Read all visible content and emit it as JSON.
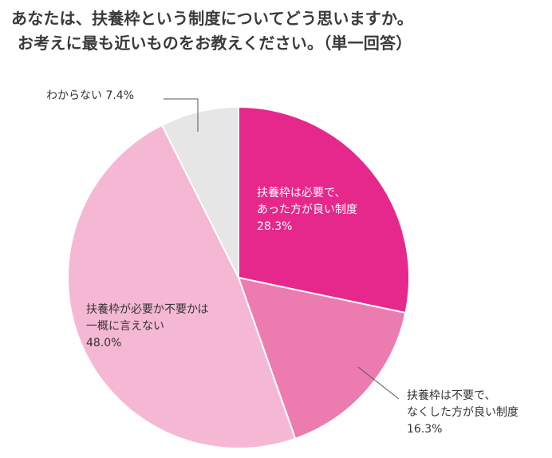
{
  "title": {
    "line1": "あなたは、扶養枠という制度についてどう思いますか。",
    "line2": "お考えに最も近いものをお教えください。（単一回答）"
  },
  "chart_data": {
    "type": "pie",
    "start_angle_deg": 0,
    "direction": "clockwise",
    "slices": [
      {
        "label_lines": [
          "扶養枠は必要で、",
          "あった方が良い制度"
        ],
        "value": 28.3,
        "value_label": "28.3%",
        "color": "#e6288c"
      },
      {
        "label_lines": [
          "扶養枠は不要で、",
          "なくした方が良い制度"
        ],
        "value": 16.3,
        "value_label": "16.3%",
        "color": "#ec7cb0"
      },
      {
        "label_lines": [
          "扶養枠が必要か不要かは",
          "一概に言えない"
        ],
        "value": 48.0,
        "value_label": "48.0%",
        "color": "#f5b8d4"
      },
      {
        "label_lines": [
          "わからない"
        ],
        "value": 7.4,
        "value_label": "7.4%",
        "color": "#e6e6e6"
      }
    ],
    "slice_border_color": "#ffffff"
  }
}
